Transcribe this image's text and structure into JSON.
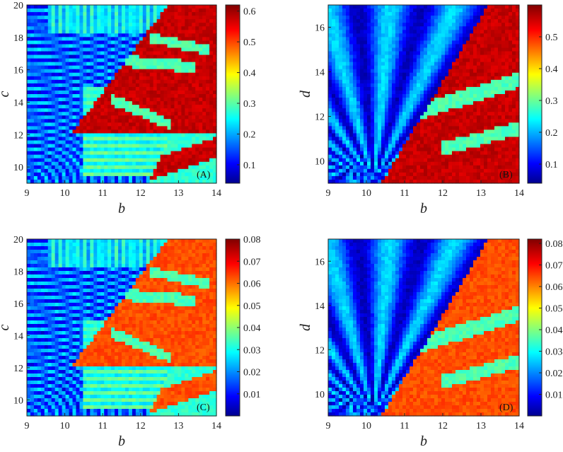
{
  "chart_data": [
    {
      "type": "heatmap",
      "panel_label": "(A)",
      "xlabel": "b",
      "ylabel": "c",
      "xlim": [
        9,
        14
      ],
      "ylim": [
        9,
        20
      ],
      "xticks": [
        "9",
        "10",
        "11",
        "12",
        "13",
        "14"
      ],
      "yticks": [
        "10",
        "12",
        "14",
        "16",
        "18",
        "20"
      ],
      "colorbar": {
        "min": 0.04,
        "max": 0.62,
        "ticks": [
          "0.1",
          "0.2",
          "0.3",
          "0.4",
          "0.5",
          "0.6"
        ]
      },
      "colormap": "jet",
      "variant": "bc"
    },
    {
      "type": "heatmap",
      "panel_label": "(B)",
      "xlabel": "b",
      "ylabel": "d",
      "xlim": [
        9,
        14
      ],
      "ylim": [
        9,
        17
      ],
      "xticks": [
        "9",
        "10",
        "11",
        "12",
        "13",
        "14"
      ],
      "yticks": [
        "10",
        "12",
        "14",
        "16"
      ],
      "colorbar": {
        "min": 0.04,
        "max": 0.6,
        "ticks": [
          "0.1",
          "0.2",
          "0.3",
          "0.4",
          "0.5"
        ]
      },
      "colormap": "jet",
      "variant": "bd"
    },
    {
      "type": "heatmap",
      "panel_label": "(C)",
      "xlabel": "b",
      "ylabel": "c",
      "xlim": [
        9,
        14
      ],
      "ylim": [
        9,
        20
      ],
      "xticks": [
        "9",
        "10",
        "11",
        "12",
        "13",
        "14"
      ],
      "yticks": [
        "10",
        "12",
        "14",
        "16",
        "18",
        "20"
      ],
      "colorbar": {
        "min": 0.0,
        "max": 0.08,
        "ticks": [
          "0.01",
          "0.02",
          "0.03",
          "0.04",
          "0.05",
          "0.06",
          "0.07",
          "0.08"
        ]
      },
      "colormap": "jet",
      "variant": "bc"
    },
    {
      "type": "heatmap",
      "panel_label": "(D)",
      "xlabel": "b",
      "ylabel": "d",
      "xlim": [
        9,
        14
      ],
      "ylim": [
        9,
        17
      ],
      "xticks": [
        "9",
        "10",
        "11",
        "12",
        "13",
        "14"
      ],
      "yticks": [
        "10",
        "12",
        "14",
        "16"
      ],
      "colorbar": {
        "min": 0.0,
        "max": 0.082,
        "ticks": [
          "0.01",
          "0.02",
          "0.03",
          "0.04",
          "0.05",
          "0.06",
          "0.07",
          "0.08"
        ]
      },
      "colormap": "jet",
      "variant": "bd"
    }
  ]
}
